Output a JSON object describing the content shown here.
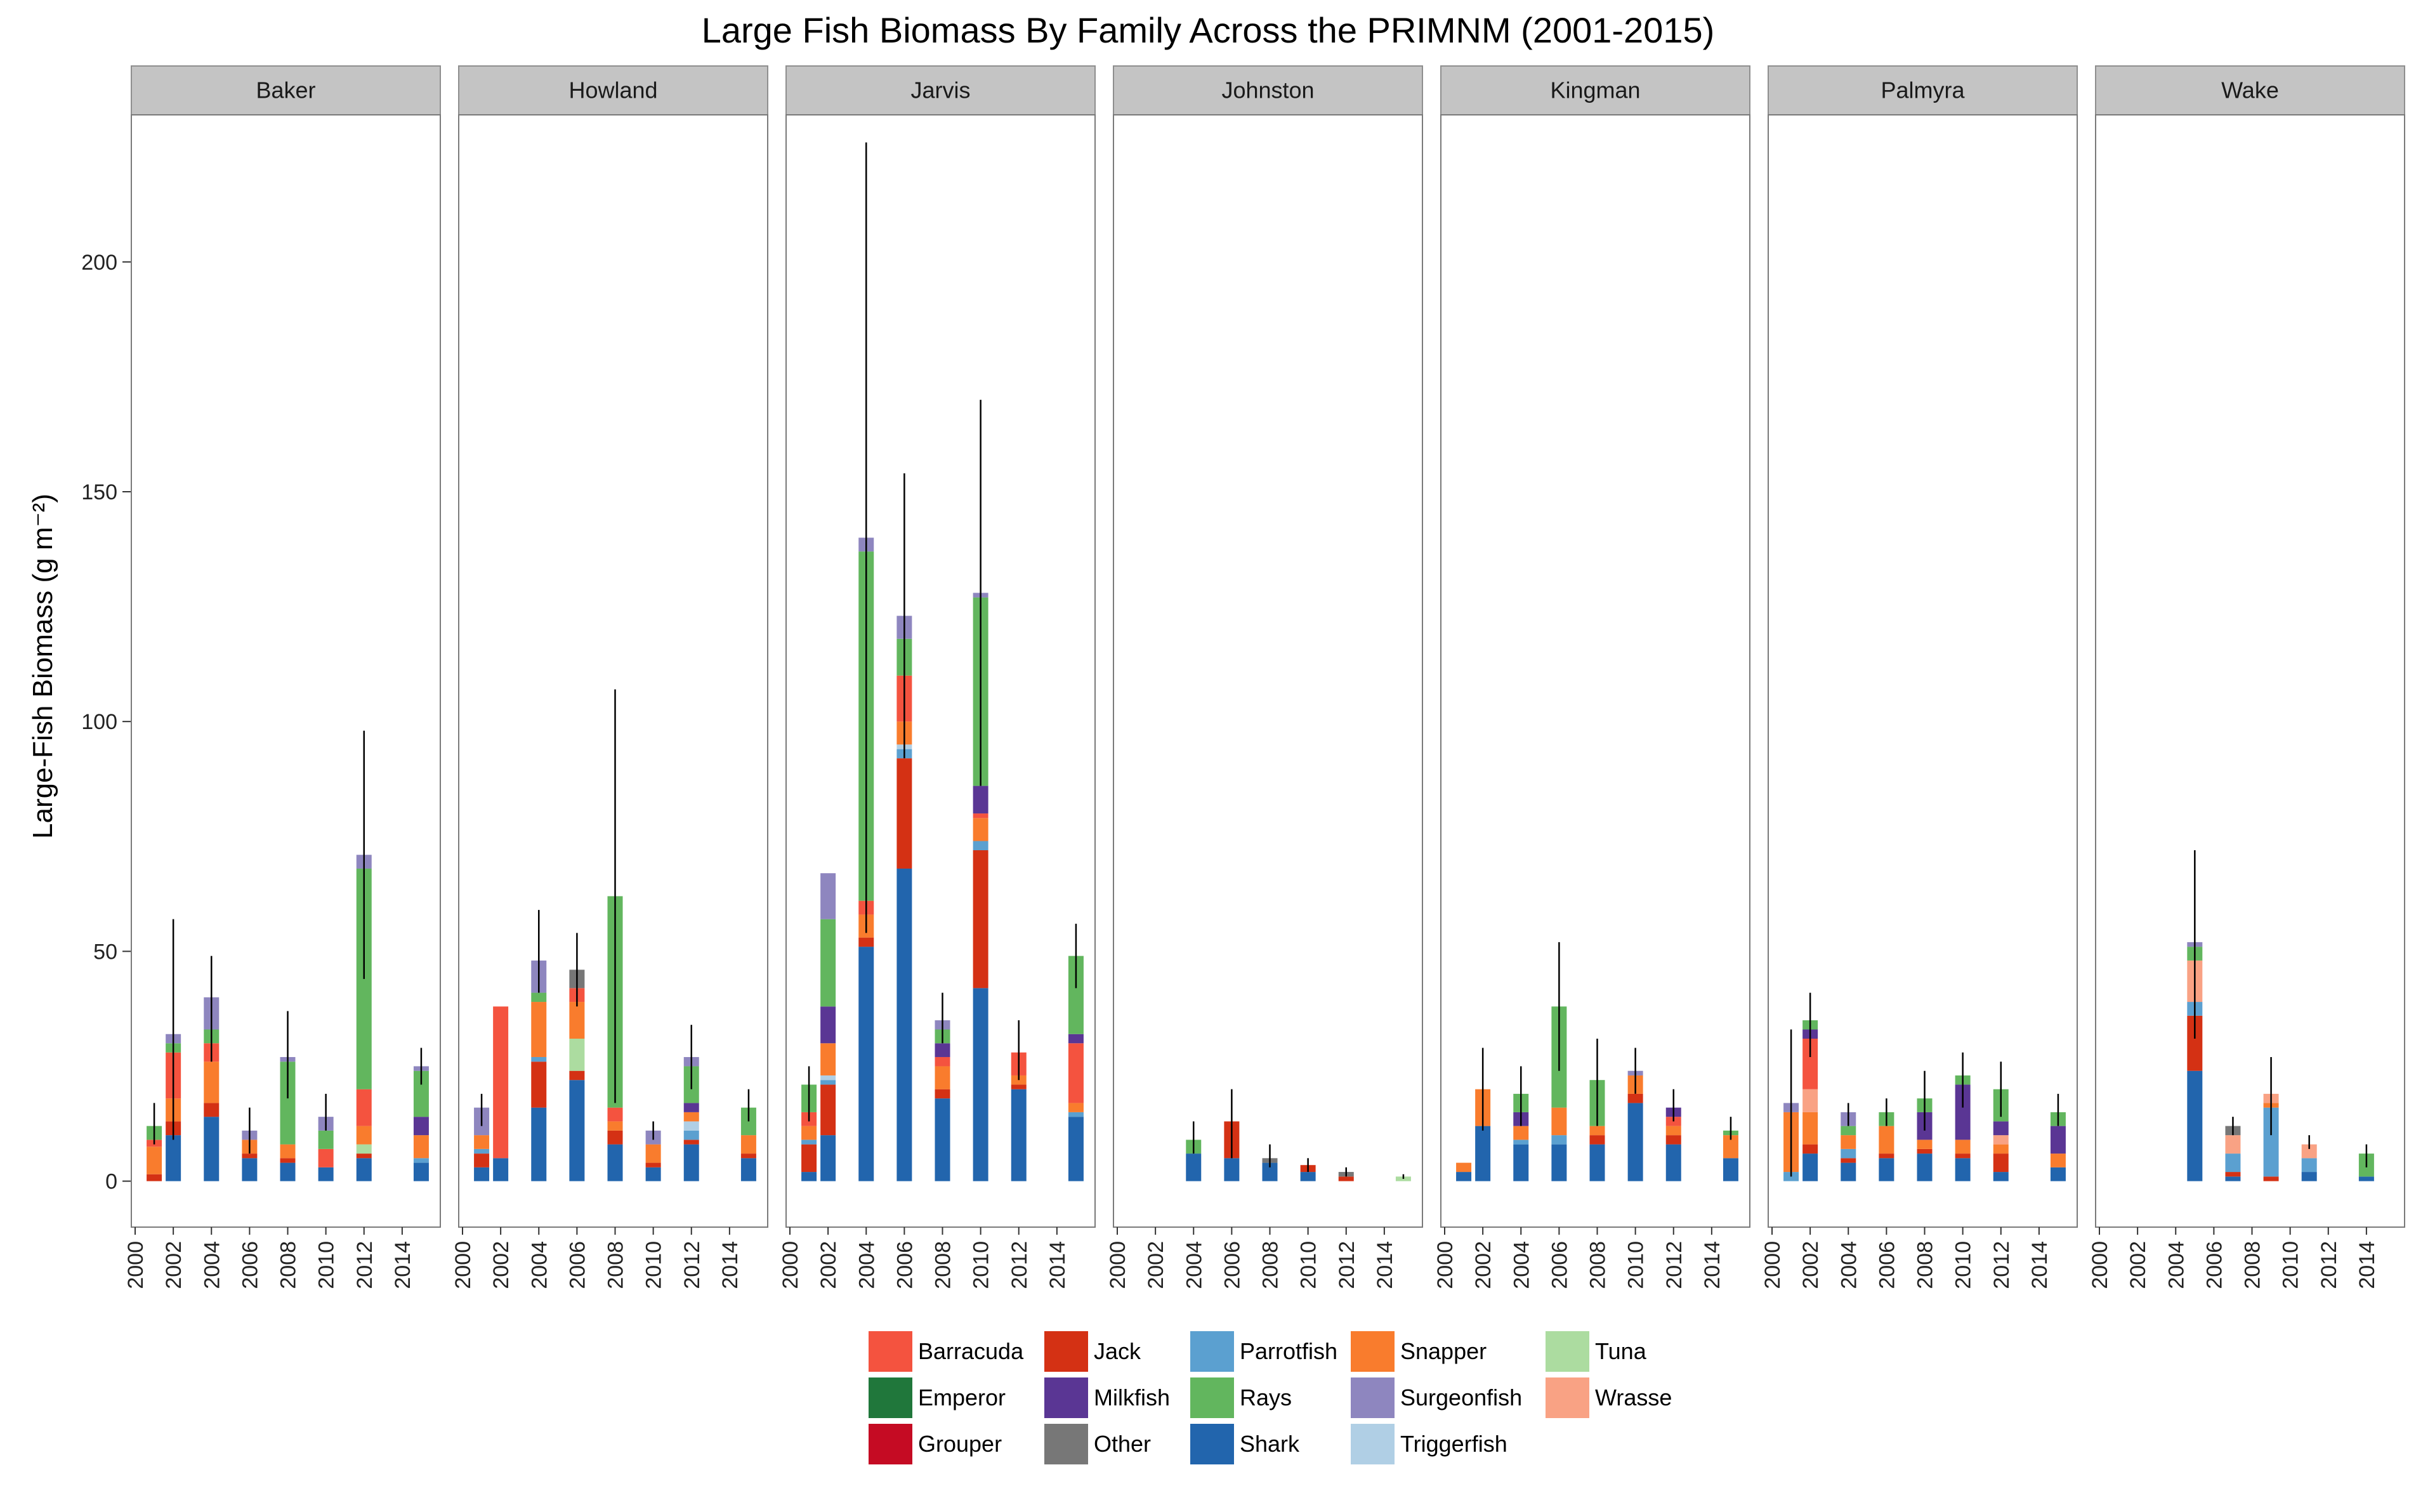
{
  "chart_data": {
    "type": "bar",
    "stacked": true,
    "facet_by": "island",
    "title": "Large Fish Biomass By Family Across the PRIMNM (2001-2015)",
    "ylabel": "Large-Fish Biomass (g m⁻²)",
    "xlabel": "",
    "ylim": [
      -10,
      232
    ],
    "yticks": [
      0,
      50,
      100,
      150,
      200
    ],
    "xticks": [
      2000,
      2002,
      2004,
      2006,
      2008,
      2010,
      2012,
      2014
    ],
    "xlim": [
      1999.8,
      2016
    ],
    "grid": false,
    "legend_position": "bottom",
    "families": [
      "Barracuda",
      "Emperor",
      "Grouper",
      "Jack",
      "Milkfish",
      "Other",
      "Parrotfish",
      "Rays",
      "Shark",
      "Snapper",
      "Surgeonfish",
      "Triggerfish",
      "Tuna",
      "Wrasse"
    ],
    "colors": {
      "Barracuda": "#f4533f",
      "Emperor": "#20773b",
      "Grouper": "#c50b23",
      "Jack": "#d43114",
      "Milkfish": "#5a3694",
      "Other": "#777777",
      "Parrotfish": "#5ba0d0",
      "Rays": "#62b65e",
      "Shark": "#2265ad",
      "Snapper": "#f97c2d",
      "Surgeonfish": "#8e86bf",
      "Triggerfish": "#b0cfe5",
      "Tuna": "#acdca0",
      "Wrasse": "#f9a284"
    },
    "panels": [
      {
        "name": "Baker",
        "bars": [
          {
            "year": 2001,
            "top": 12,
            "err": [
              8,
              17
            ],
            "segs": {
              "Barracuda": 1.5,
              "Jack": 1.5,
              "Snapper": 6,
              "Rays": 3
            }
          },
          {
            "year": 2002,
            "top": 32,
            "err": [
              9,
              57
            ],
            "segs": {
              "Shark": 10,
              "Jack": 3,
              "Snapper": 5,
              "Barracuda": 10,
              "Rays": 2,
              "Surgeonfish": 2
            }
          },
          {
            "year": 2004,
            "top": 40,
            "err": [
              26,
              49
            ],
            "segs": {
              "Shark": 14,
              "Jack": 3,
              "Snapper": 9,
              "Barracuda": 4,
              "Rays": 3,
              "Surgeonfish": 7
            }
          },
          {
            "year": 2006,
            "top": 11,
            "err": [
              6,
              16
            ],
            "segs": {
              "Shark": 5,
              "Jack": 1,
              "Snapper": 3,
              "Surgeonfish": 2
            }
          },
          {
            "year": 2008,
            "top": 27,
            "err": [
              18,
              37
            ],
            "segs": {
              "Shark": 4,
              "Jack": 1,
              "Snapper": 3,
              "Rays": 18,
              "Surgeonfish": 1
            }
          },
          {
            "year": 2010,
            "top": 14,
            "err": [
              11,
              19
            ],
            "segs": {
              "Shark": 3,
              "Barracuda": 4,
              "Rays": 4,
              "Surgeonfish": 3
            }
          },
          {
            "year": 2012,
            "top": 71,
            "err": [
              44,
              98
            ],
            "segs": {
              "Shark": 5,
              "Jack": 1,
              "Tuna": 2,
              "Snapper": 4,
              "Barracuda": 8,
              "Rays": 48,
              "Surgeonfish": 3
            }
          },
          {
            "year": 2015,
            "top": 25,
            "err": [
              21,
              29
            ],
            "segs": {
              "Shark": 4,
              "Parrotfish": 1,
              "Snapper": 5,
              "Milkfish": 4,
              "Rays": 10,
              "Surgeonfish": 1
            }
          }
        ]
      },
      {
        "name": "Howland",
        "bars": [
          {
            "year": 2001,
            "top": 16,
            "err": [
              12,
              19
            ],
            "segs": {
              "Shark": 3,
              "Jack": 3,
              "Parrotfish": 1,
              "Snapper": 3,
              "Surgeonfish": 6
            }
          },
          {
            "year": 2002,
            "top": 38,
            "err": [
              null,
              null
            ],
            "segs": {
              "Shark": 5,
              "Barracuda": 33
            }
          },
          {
            "year": 2004,
            "top": 48,
            "err": [
              41,
              59
            ],
            "segs": {
              "Shark": 16,
              "Jack": 10,
              "Parrotfish": 1,
              "Snapper": 12,
              "Rays": 2,
              "Surgeonfish": 7
            }
          },
          {
            "year": 2006,
            "top": 46,
            "err": [
              38,
              54
            ],
            "segs": {
              "Shark": 22,
              "Jack": 2,
              "Tuna": 7,
              "Snapper": 8,
              "Barracuda": 3,
              "Other": 4
            }
          },
          {
            "year": 2008,
            "top": 62,
            "err": [
              17,
              107
            ],
            "segs": {
              "Shark": 8,
              "Jack": 3,
              "Snapper": 2,
              "Barracuda": 3,
              "Rays": 46
            }
          },
          {
            "year": 2010,
            "top": 11,
            "err": [
              9,
              13
            ],
            "segs": {
              "Shark": 3,
              "Jack": 1,
              "Snapper": 4,
              "Surgeonfish": 3
            }
          },
          {
            "year": 2012,
            "top": 27,
            "err": [
              20,
              34
            ],
            "segs": {
              "Shark": 8,
              "Jack": 1,
              "Parrotfish": 2,
              "Triggerfish": 2,
              "Snapper": 2,
              "Milkfish": 2,
              "Rays": 8,
              "Surgeonfish": 2
            }
          },
          {
            "year": 2015,
            "top": 16,
            "err": [
              13,
              20
            ],
            "segs": {
              "Shark": 5,
              "Jack": 1,
              "Snapper": 4,
              "Rays": 6
            }
          }
        ]
      },
      {
        "name": "Jarvis",
        "bars": [
          {
            "year": 2001,
            "top": 21,
            "err": [
              13,
              25
            ],
            "segs": {
              "Shark": 2,
              "Jack": 6,
              "Parrotfish": 1,
              "Snapper": 3,
              "Barracuda": 3,
              "Rays": 6
            }
          },
          {
            "year": 2002,
            "top": 67,
            "err": [
              null,
              null
            ],
            "segs": {
              "Shark": 10,
              "Jack": 11,
              "Parrotfish": 1,
              "Snapper": 7,
              "Milkfish": 8,
              "Rays": 19,
              "Triggerfish": 1,
              "Surgeonfish": 10
            }
          },
          {
            "year": 2004,
            "top": 140,
            "err": [
              54,
              226
            ],
            "segs": {
              "Shark": 51,
              "Jack": 2,
              "Snapper": 5,
              "Barracuda": 3,
              "Rays": 76,
              "Surgeonfish": 3
            }
          },
          {
            "year": 2006,
            "top": 123,
            "err": [
              92,
              154
            ],
            "segs": {
              "Shark": 68,
              "Jack": 24,
              "Parrotfish": 2,
              "Snapper": 5,
              "Barracuda": 10,
              "Rays": 8,
              "Triggerfish": 1,
              "Surgeonfish": 5
            }
          },
          {
            "year": 2008,
            "top": 35,
            "err": [
              30,
              41
            ],
            "segs": {
              "Shark": 18,
              "Jack": 2,
              "Snapper": 5,
              "Barracuda": 2,
              "Milkfish": 3,
              "Rays": 3,
              "Surgeonfish": 2
            }
          },
          {
            "year": 2010,
            "top": 128,
            "err": [
              86,
              170
            ],
            "segs": {
              "Shark": 42,
              "Jack": 30,
              "Parrotfish": 2,
              "Snapper": 5,
              "Barracuda": 1,
              "Milkfish": 6,
              "Rays": 41,
              "Surgeonfish": 1
            }
          },
          {
            "year": 2012,
            "top": 28,
            "err": [
              22,
              35
            ],
            "segs": {
              "Shark": 20,
              "Jack": 1,
              "Snapper": 2,
              "Barracuda": 5
            }
          },
          {
            "year": 2015,
            "top": 49,
            "err": [
              42,
              56
            ],
            "segs": {
              "Shark": 14,
              "Parrotfish": 1,
              "Snapper": 2,
              "Barracuda": 13,
              "Milkfish": 2,
              "Rays": 17
            }
          }
        ]
      },
      {
        "name": "Johnston",
        "bars": [
          {
            "year": 2004,
            "top": 9,
            "err": [
              6,
              13
            ],
            "segs": {
              "Shark": 6,
              "Rays": 3
            }
          },
          {
            "year": 2006,
            "top": 13,
            "err": [
              5,
              20
            ],
            "segs": {
              "Shark": 5,
              "Jack": 8
            }
          },
          {
            "year": 2008,
            "top": 5,
            "err": [
              3,
              8
            ],
            "segs": {
              "Shark": 4,
              "Other": 1
            }
          },
          {
            "year": 2010,
            "top": 3.5,
            "err": [
              2,
              5
            ],
            "segs": {
              "Shark": 2,
              "Jack": 1.5
            }
          },
          {
            "year": 2012,
            "top": 2,
            "err": [
              1,
              3
            ],
            "segs": {
              "Jack": 1,
              "Other": 1
            }
          },
          {
            "year": 2015,
            "top": 1,
            "err": [
              0.5,
              1.5
            ],
            "segs": {
              "Tuna": 1
            }
          }
        ]
      },
      {
        "name": "Kingman",
        "bars": [
          {
            "year": 2001,
            "top": 4,
            "err": [
              null,
              null
            ],
            "segs": {
              "Shark": 2,
              "Snapper": 2
            }
          },
          {
            "year": 2002,
            "top": 20,
            "err": [
              11,
              29
            ],
            "segs": {
              "Shark": 12,
              "Snapper": 8
            }
          },
          {
            "year": 2004,
            "top": 19,
            "err": [
              12,
              25
            ],
            "segs": {
              "Shark": 8,
              "Parrotfish": 1,
              "Snapper": 3,
              "Milkfish": 3,
              "Rays": 4
            }
          },
          {
            "year": 2006,
            "top": 38,
            "err": [
              24,
              52
            ],
            "segs": {
              "Shark": 8,
              "Parrotfish": 2,
              "Snapper": 6,
              "Rays": 22
            }
          },
          {
            "year": 2008,
            "top": 22,
            "err": [
              12,
              31
            ],
            "segs": {
              "Shark": 8,
              "Jack": 2,
              "Snapper": 2,
              "Rays": 10
            }
          },
          {
            "year": 2010,
            "top": 24,
            "err": [
              19,
              29
            ],
            "segs": {
              "Shark": 17,
              "Jack": 2,
              "Snapper": 4,
              "Surgeonfish": 1
            }
          },
          {
            "year": 2012,
            "top": 16,
            "err": [
              13,
              20
            ],
            "segs": {
              "Shark": 8,
              "Jack": 2,
              "Snapper": 2,
              "Barracuda": 2,
              "Milkfish": 2
            }
          },
          {
            "year": 2015,
            "top": 11,
            "err": [
              9,
              14
            ],
            "segs": {
              "Shark": 5,
              "Snapper": 5,
              "Rays": 1
            }
          }
        ]
      },
      {
        "name": "Palmyra",
        "bars": [
          {
            "year": 2001,
            "top": 17,
            "err": [
              1,
              33
            ],
            "segs": {
              "Parrotfish": 2,
              "Snapper": 13,
              "Surgeonfish": 2
            }
          },
          {
            "year": 2002,
            "top": 35,
            "err": [
              27,
              41
            ],
            "segs": {
              "Shark": 6,
              "Jack": 2,
              "Snapper": 7,
              "Wrasse": 5,
              "Barracuda": 11,
              "Milkfish": 2,
              "Rays": 2
            }
          },
          {
            "year": 2004,
            "top": 15,
            "err": [
              12,
              17
            ],
            "segs": {
              "Shark": 4,
              "Jack": 1,
              "Parrotfish": 2,
              "Snapper": 3,
              "Surgeonfish": 3,
              "Rays": 2
            }
          },
          {
            "year": 2006,
            "top": 15,
            "err": [
              12,
              18
            ],
            "segs": {
              "Shark": 5,
              "Jack": 1,
              "Snapper": 6,
              "Rays": 3
            }
          },
          {
            "year": 2008,
            "top": 18,
            "err": [
              11,
              24
            ],
            "segs": {
              "Shark": 6,
              "Jack": 1,
              "Snapper": 2,
              "Milkfish": 6,
              "Rays": 3
            }
          },
          {
            "year": 2010,
            "top": 23,
            "err": [
              16,
              28
            ],
            "segs": {
              "Shark": 5,
              "Jack": 1,
              "Snapper": 3,
              "Milkfish": 12,
              "Rays": 2
            }
          },
          {
            "year": 2012,
            "top": 20,
            "err": [
              14,
              26
            ],
            "segs": {
              "Shark": 2,
              "Jack": 4,
              "Snapper": 2,
              "Wrasse": 2,
              "Milkfish": 3,
              "Rays": 7
            }
          },
          {
            "year": 2015,
            "top": 15,
            "err": [
              12,
              19
            ],
            "segs": {
              "Shark": 3,
              "Snapper": 3,
              "Milkfish": 6,
              "Rays": 3
            }
          }
        ]
      },
      {
        "name": "Wake",
        "bars": [
          {
            "year": 2005,
            "top": 52,
            "err": [
              31,
              72
            ],
            "segs": {
              "Shark": 24,
              "Jack": 12,
              "Parrotfish": 3,
              "Wrasse": 9,
              "Surgeonfish": 1,
              "Rays": 3
            }
          },
          {
            "year": 2007,
            "top": 12,
            "err": [
              10,
              14
            ],
            "segs": {
              "Shark": 1,
              "Jack": 1,
              "Parrotfish": 4,
              "Wrasse": 4,
              "Other": 2
            }
          },
          {
            "year": 2009,
            "top": 19,
            "err": [
              10,
              27
            ],
            "segs": {
              "Jack": 1,
              "Parrotfish": 15,
              "Wrasse": 2,
              "Snapper": 1
            }
          },
          {
            "year": 2011,
            "top": 8,
            "err": [
              7,
              10
            ],
            "segs": {
              "Shark": 2,
              "Parrotfish": 3,
              "Wrasse": 3
            }
          },
          {
            "year": 2014,
            "top": 6,
            "err": [
              3,
              8
            ],
            "segs": {
              "Shark": 1,
              "Rays": 5
            }
          }
        ]
      }
    ]
  }
}
